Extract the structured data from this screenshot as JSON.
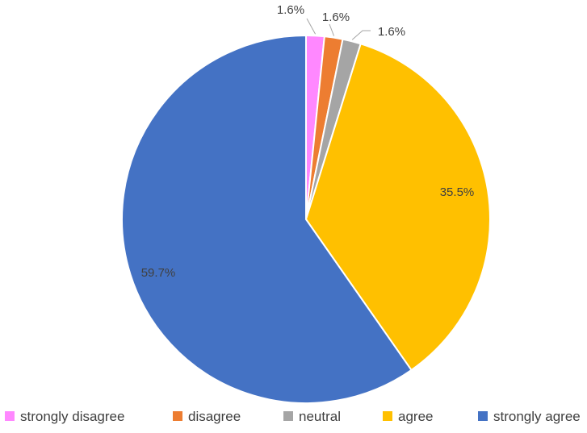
{
  "chart_data": {
    "type": "pie",
    "title": "",
    "legend_position": "bottom",
    "start_angle_deg": 0,
    "direction": "clockwise",
    "slices": [
      {
        "name": "strongly disagree",
        "value": 1.6,
        "label": "1.6%",
        "color": "#FF88FF"
      },
      {
        "name": "disagree",
        "value": 1.6,
        "label": "1.6%",
        "color": "#ED7D31"
      },
      {
        "name": "neutral",
        "value": 1.6,
        "label": "1.6%",
        "color": "#A5A5A5"
      },
      {
        "name": "agree",
        "value": 35.5,
        "label": "35.5%",
        "color": "#FFC000"
      },
      {
        "name": "strongly agree",
        "value": 59.7,
        "label": "59.7%",
        "color": "#4472C4"
      }
    ]
  }
}
